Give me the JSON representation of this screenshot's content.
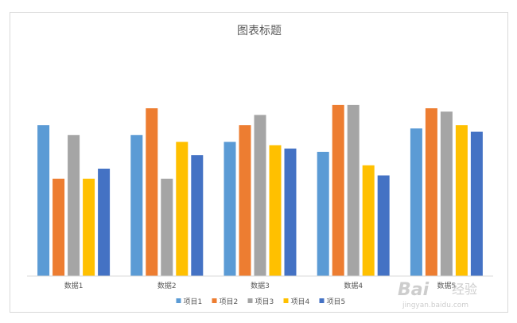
{
  "chart_data": {
    "type": "bar",
    "title": "图表标题",
    "categories": [
      "数据1",
      "数据2",
      "数据3",
      "数据4",
      "数据5"
    ],
    "series": [
      {
        "name": "项目1",
        "color": "#5b9bd5",
        "values": [
          4.5,
          4.2,
          4.0,
          3.7,
          4.4
        ]
      },
      {
        "name": "项目2",
        "color": "#ed7d31",
        "values": [
          2.9,
          5.0,
          4.5,
          5.1,
          5.0
        ]
      },
      {
        "name": "项目3",
        "color": "#a5a5a5",
        "values": [
          4.2,
          2.9,
          4.8,
          5.1,
          4.9
        ]
      },
      {
        "name": "项目4",
        "color": "#ffc000",
        "values": [
          2.9,
          4.0,
          3.9,
          3.3,
          4.5
        ]
      },
      {
        "name": "项目5",
        "color": "#4472c4",
        "values": [
          3.2,
          3.6,
          3.8,
          3.0,
          4.3
        ]
      }
    ],
    "ylim": [
      0,
      5.5
    ],
    "grid": false,
    "legend": "bottom"
  },
  "watermark": {
    "brand": "Bai",
    "brand_cn": "经验",
    "url": "jingyan.baidu.com"
  }
}
